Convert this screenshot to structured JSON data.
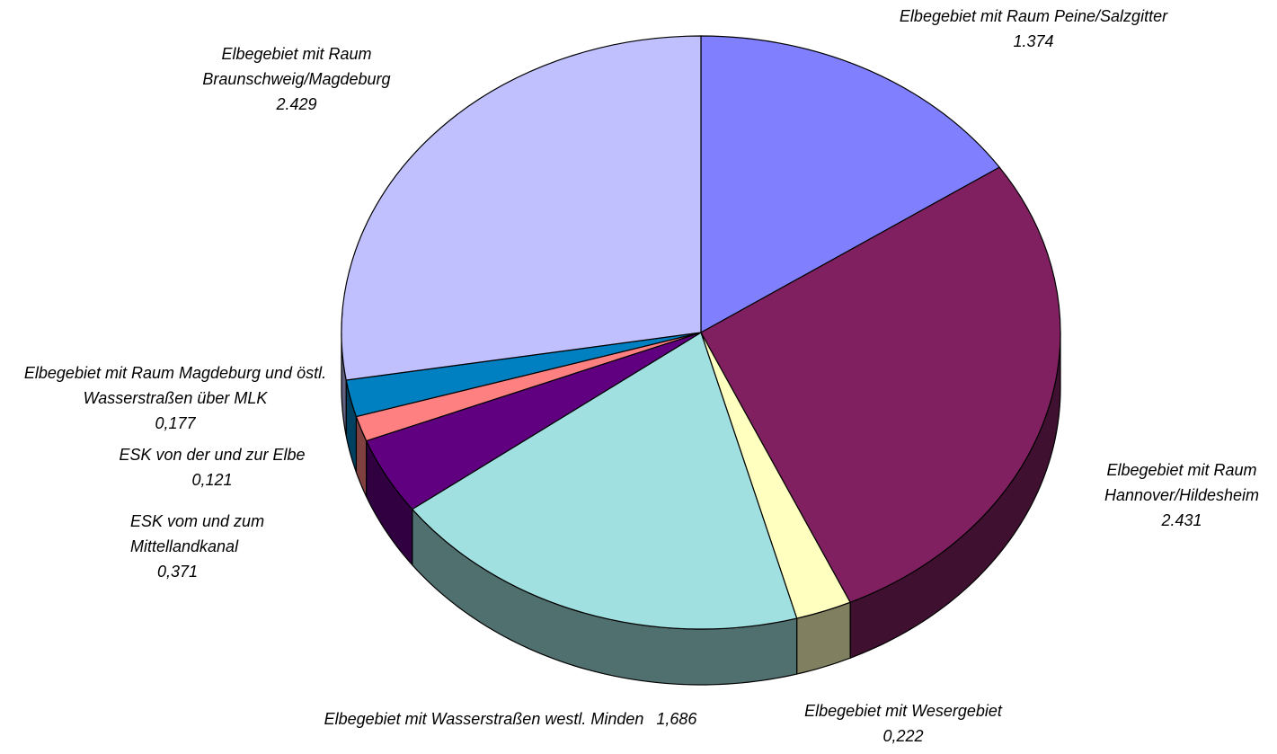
{
  "chart_data": {
    "type": "pie3d",
    "categories": [
      "Elbegebiet mit Raum Peine/Salzgitter",
      "Elbegebiet mit Raum Hannover/Hildesheim",
      "Elbegebiet mit Wesergebiet",
      "Elbegebiet mit Wasserstraßen westl. Minden",
      "ESK vom  und zum Mittellandkanal",
      "ESK von der und zur Elbe",
      "Elbegebiet mit Raum Magdeburg und östl. Wasserstraßen über MLK",
      "Elbegebiet mit Raum Braunschweig/Magdeburg"
    ],
    "values": [
      1.374,
      2.431,
      0.222,
      1.686,
      0.371,
      0.121,
      0.177,
      2.429
    ],
    "value_labels": [
      "1.374",
      "2.431",
      "0,222",
      "1,686",
      "0,371",
      "0,121",
      "0,177",
      "2.429"
    ],
    "colors": [
      "#8080ff",
      "#802060",
      "#ffffc0",
      "#a0e0e0",
      "#600080",
      "#ff8080",
      "#0080c0",
      "#c0c0ff"
    ]
  }
}
